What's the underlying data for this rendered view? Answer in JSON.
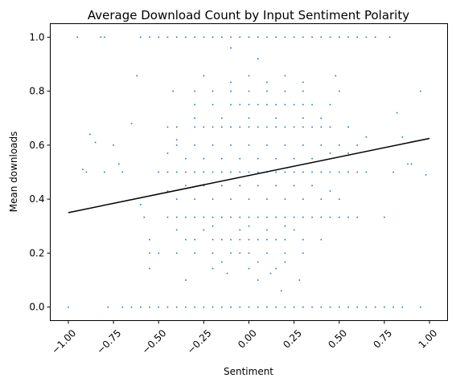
{
  "chart_data": {
    "type": "scatter",
    "title": "Average Download Count by Input Sentiment Polarity",
    "xlabel": "Sentiment",
    "ylabel": "Mean downloads",
    "xlim": [
      -1.1,
      1.1
    ],
    "ylim": [
      -0.05,
      1.05
    ],
    "x_ticks": [
      -1.0,
      -0.75,
      -0.5,
      -0.25,
      0.0,
      0.25,
      0.5,
      0.75,
      1.0
    ],
    "x_tick_labels": [
      "−1.00",
      "−0.75",
      "−0.50",
      "−0.25",
      "0.00",
      "0.25",
      "0.50",
      "0.75",
      "1.00"
    ],
    "y_ticks": [
      0.0,
      0.2,
      0.4,
      0.6,
      0.8,
      1.0
    ],
    "y_tick_labels": [
      "0.0",
      "0.2",
      "0.4",
      "0.6",
      "0.8",
      "1.0"
    ],
    "x_tick_rotation": 45,
    "grid": false,
    "marker_color": "#1f77b4",
    "trend_line": {
      "color": "#000000",
      "x": [
        -1.0,
        1.0
      ],
      "y": [
        0.35,
        0.625
      ]
    },
    "points": [
      [
        -1.0,
        0.0
      ],
      [
        -0.78,
        0.0
      ],
      [
        -0.7,
        0.0
      ],
      [
        -0.65,
        0.0
      ],
      [
        -0.6,
        0.0
      ],
      [
        -0.55,
        0.0
      ],
      [
        -0.5,
        0.0
      ],
      [
        -0.45,
        0.0
      ],
      [
        -0.4,
        0.0
      ],
      [
        -0.35,
        0.0
      ],
      [
        -0.3,
        0.0
      ],
      [
        -0.25,
        0.0
      ],
      [
        -0.2,
        0.0
      ],
      [
        -0.15,
        0.0
      ],
      [
        -0.1,
        0.0
      ],
      [
        -0.05,
        0.0
      ],
      [
        0.0,
        0.0
      ],
      [
        0.05,
        0.0
      ],
      [
        0.1,
        0.0
      ],
      [
        0.15,
        0.0
      ],
      [
        0.2,
        0.0
      ],
      [
        0.25,
        0.0
      ],
      [
        0.3,
        0.0
      ],
      [
        0.35,
        0.0
      ],
      [
        0.4,
        0.0
      ],
      [
        0.45,
        0.0
      ],
      [
        0.5,
        0.0
      ],
      [
        0.55,
        0.0
      ],
      [
        0.6,
        0.0
      ],
      [
        0.65,
        0.0
      ],
      [
        0.7,
        0.0
      ],
      [
        0.75,
        0.0
      ],
      [
        0.8,
        0.0
      ],
      [
        0.85,
        0.0
      ],
      [
        0.95,
        0.0
      ],
      [
        -0.95,
        1.0
      ],
      [
        -0.82,
        1.0
      ],
      [
        -0.8,
        1.0
      ],
      [
        -0.6,
        1.0
      ],
      [
        -0.55,
        1.0
      ],
      [
        -0.5,
        1.0
      ],
      [
        -0.45,
        1.0
      ],
      [
        -0.4,
        1.0
      ],
      [
        -0.35,
        1.0
      ],
      [
        -0.3,
        1.0
      ],
      [
        -0.25,
        1.0
      ],
      [
        -0.2,
        1.0
      ],
      [
        -0.15,
        1.0
      ],
      [
        -0.1,
        1.0
      ],
      [
        -0.05,
        1.0
      ],
      [
        0.0,
        1.0
      ],
      [
        0.05,
        1.0
      ],
      [
        0.1,
        1.0
      ],
      [
        0.15,
        1.0
      ],
      [
        0.2,
        1.0
      ],
      [
        0.25,
        1.0
      ],
      [
        0.3,
        1.0
      ],
      [
        0.35,
        1.0
      ],
      [
        0.4,
        1.0
      ],
      [
        0.45,
        1.0
      ],
      [
        0.5,
        1.0
      ],
      [
        0.55,
        1.0
      ],
      [
        0.6,
        1.0
      ],
      [
        0.65,
        1.0
      ],
      [
        0.7,
        1.0
      ],
      [
        0.78,
        1.0
      ],
      [
        -0.1,
        0.96
      ],
      [
        0.05,
        0.92
      ],
      [
        -0.5,
        0.5
      ],
      [
        -0.45,
        0.5
      ],
      [
        -0.4,
        0.5
      ],
      [
        -0.35,
        0.5
      ],
      [
        -0.3,
        0.5
      ],
      [
        -0.25,
        0.5
      ],
      [
        -0.2,
        0.5
      ],
      [
        -0.15,
        0.5
      ],
      [
        -0.1,
        0.5
      ],
      [
        -0.05,
        0.5
      ],
      [
        0.0,
        0.5
      ],
      [
        0.05,
        0.5
      ],
      [
        0.1,
        0.5
      ],
      [
        0.15,
        0.5
      ],
      [
        0.2,
        0.5
      ],
      [
        0.25,
        0.5
      ],
      [
        0.3,
        0.5
      ],
      [
        0.35,
        0.5
      ],
      [
        0.4,
        0.5
      ],
      [
        0.45,
        0.5
      ],
      [
        0.5,
        0.5
      ],
      [
        0.55,
        0.5
      ],
      [
        0.6,
        0.5
      ],
      [
        0.65,
        0.5
      ],
      [
        -0.9,
        0.5
      ],
      [
        -0.8,
        0.5
      ],
      [
        -0.7,
        0.5
      ],
      [
        0.8,
        0.5
      ],
      [
        -0.45,
        0.333
      ],
      [
        -0.4,
        0.333
      ],
      [
        -0.35,
        0.333
      ],
      [
        -0.3,
        0.333
      ],
      [
        -0.25,
        0.333
      ],
      [
        -0.2,
        0.333
      ],
      [
        -0.15,
        0.333
      ],
      [
        -0.1,
        0.333
      ],
      [
        -0.05,
        0.333
      ],
      [
        0.0,
        0.333
      ],
      [
        0.05,
        0.333
      ],
      [
        0.1,
        0.333
      ],
      [
        0.15,
        0.333
      ],
      [
        0.2,
        0.333
      ],
      [
        0.25,
        0.333
      ],
      [
        0.3,
        0.333
      ],
      [
        0.35,
        0.333
      ],
      [
        0.4,
        0.333
      ],
      [
        0.45,
        0.333
      ],
      [
        0.5,
        0.333
      ],
      [
        0.55,
        0.333
      ],
      [
        0.6,
        0.333
      ],
      [
        0.75,
        0.333
      ],
      [
        -0.58,
        0.333
      ],
      [
        -0.45,
        0.667
      ],
      [
        -0.4,
        0.667
      ],
      [
        -0.3,
        0.667
      ],
      [
        -0.25,
        0.667
      ],
      [
        -0.2,
        0.667
      ],
      [
        -0.15,
        0.667
      ],
      [
        -0.1,
        0.667
      ],
      [
        -0.05,
        0.667
      ],
      [
        0.0,
        0.667
      ],
      [
        0.05,
        0.667
      ],
      [
        0.1,
        0.667
      ],
      [
        0.15,
        0.667
      ],
      [
        0.2,
        0.667
      ],
      [
        0.25,
        0.667
      ],
      [
        0.3,
        0.667
      ],
      [
        0.35,
        0.667
      ],
      [
        0.4,
        0.667
      ],
      [
        0.45,
        0.667
      ],
      [
        0.55,
        0.667
      ],
      [
        -0.65,
        0.68
      ],
      [
        -0.35,
        0.25
      ],
      [
        -0.3,
        0.25
      ],
      [
        -0.2,
        0.25
      ],
      [
        -0.15,
        0.25
      ],
      [
        -0.1,
        0.25
      ],
      [
        -0.05,
        0.25
      ],
      [
        0.0,
        0.25
      ],
      [
        0.05,
        0.25
      ],
      [
        0.1,
        0.25
      ],
      [
        0.15,
        0.25
      ],
      [
        0.2,
        0.25
      ],
      [
        0.3,
        0.25
      ],
      [
        0.4,
        0.25
      ],
      [
        -0.55,
        0.25
      ],
      [
        -0.3,
        0.75
      ],
      [
        -0.2,
        0.75
      ],
      [
        -0.1,
        0.75
      ],
      [
        -0.05,
        0.75
      ],
      [
        0.0,
        0.75
      ],
      [
        0.05,
        0.75
      ],
      [
        0.1,
        0.75
      ],
      [
        0.15,
        0.75
      ],
      [
        0.2,
        0.75
      ],
      [
        0.25,
        0.75
      ],
      [
        0.3,
        0.75
      ],
      [
        0.35,
        0.75
      ],
      [
        0.45,
        0.75
      ],
      [
        -0.4,
        0.2
      ],
      [
        -0.3,
        0.2
      ],
      [
        -0.2,
        0.2
      ],
      [
        -0.1,
        0.2
      ],
      [
        -0.05,
        0.2
      ],
      [
        0.0,
        0.2
      ],
      [
        0.1,
        0.2
      ],
      [
        0.2,
        0.2
      ],
      [
        0.3,
        0.2
      ],
      [
        -0.5,
        0.2
      ],
      [
        -0.55,
        0.2
      ],
      [
        -0.3,
        0.4
      ],
      [
        -0.2,
        0.4
      ],
      [
        -0.1,
        0.4
      ],
      [
        0.0,
        0.4
      ],
      [
        0.1,
        0.4
      ],
      [
        0.2,
        0.4
      ],
      [
        0.3,
        0.4
      ],
      [
        0.4,
        0.4
      ],
      [
        -0.4,
        0.4
      ],
      [
        0.5,
        0.4
      ],
      [
        -0.3,
        0.6
      ],
      [
        -0.2,
        0.6
      ],
      [
        -0.1,
        0.6
      ],
      [
        0.0,
        0.6
      ],
      [
        0.1,
        0.6
      ],
      [
        0.2,
        0.6
      ],
      [
        0.3,
        0.6
      ],
      [
        0.4,
        0.6
      ],
      [
        -0.4,
        0.6
      ],
      [
        0.5,
        0.6
      ],
      [
        -0.75,
        0.6
      ],
      [
        0.6,
        0.6
      ],
      [
        -0.3,
        0.8
      ],
      [
        -0.2,
        0.8
      ],
      [
        -0.1,
        0.8
      ],
      [
        0.0,
        0.8
      ],
      [
        0.1,
        0.8
      ],
      [
        0.2,
        0.8
      ],
      [
        0.3,
        0.8
      ],
      [
        -0.42,
        0.8
      ],
      [
        0.5,
        0.8
      ],
      [
        0.95,
        0.8
      ],
      [
        -0.2,
        0.143
      ],
      [
        0.0,
        0.143
      ],
      [
        0.15,
        0.143
      ],
      [
        -0.55,
        0.143
      ],
      [
        -0.15,
        0.167
      ],
      [
        0.05,
        0.167
      ],
      [
        0.2,
        0.167
      ],
      [
        -0.12,
        0.125
      ],
      [
        0.12,
        0.125
      ],
      [
        -0.35,
        0.1
      ],
      [
        0.05,
        0.1
      ],
      [
        0.28,
        0.1
      ],
      [
        0.18,
        0.06
      ],
      [
        -0.4,
        0.286
      ],
      [
        -0.25,
        0.286
      ],
      [
        -0.05,
        0.286
      ],
      [
        0.1,
        0.286
      ],
      [
        0.25,
        0.286
      ],
      [
        -0.2,
        0.3
      ],
      [
        0.0,
        0.3
      ],
      [
        0.2,
        0.3
      ],
      [
        -0.35,
        0.45
      ],
      [
        -0.25,
        0.45
      ],
      [
        -0.15,
        0.45
      ],
      [
        -0.05,
        0.45
      ],
      [
        0.05,
        0.45
      ],
      [
        0.15,
        0.45
      ],
      [
        0.25,
        0.45
      ],
      [
        0.35,
        0.45
      ],
      [
        -0.45,
        0.43
      ],
      [
        0.45,
        0.43
      ],
      [
        -0.6,
        0.38
      ],
      [
        -0.35,
        0.55
      ],
      [
        -0.25,
        0.55
      ],
      [
        -0.15,
        0.55
      ],
      [
        -0.05,
        0.55
      ],
      [
        0.05,
        0.55
      ],
      [
        0.15,
        0.55
      ],
      [
        0.25,
        0.55
      ],
      [
        0.35,
        0.55
      ],
      [
        -0.45,
        0.57
      ],
      [
        0.45,
        0.57
      ],
      [
        0.55,
        0.57
      ],
      [
        -0.72,
        0.53
      ],
      [
        -0.3,
        0.7
      ],
      [
        -0.15,
        0.7
      ],
      [
        0.0,
        0.7
      ],
      [
        0.15,
        0.7
      ],
      [
        0.3,
        0.7
      ],
      [
        0.4,
        0.7
      ],
      [
        -0.4,
        0.62
      ],
      [
        0.65,
        0.63
      ],
      [
        0.85,
        0.63
      ],
      [
        -0.25,
        0.857
      ],
      [
        0.0,
        0.857
      ],
      [
        0.2,
        0.857
      ],
      [
        0.48,
        0.857
      ],
      [
        -0.62,
        0.857
      ],
      [
        -0.1,
        0.833
      ],
      [
        0.1,
        0.833
      ],
      [
        0.3,
        0.833
      ],
      [
        -0.85,
        0.61
      ],
      [
        0.9,
        0.53
      ],
      [
        0.88,
        0.53
      ],
      [
        -0.92,
        0.51
      ],
      [
        0.98,
        0.49
      ],
      [
        0.82,
        0.72
      ],
      [
        -0.88,
        0.64
      ]
    ]
  }
}
